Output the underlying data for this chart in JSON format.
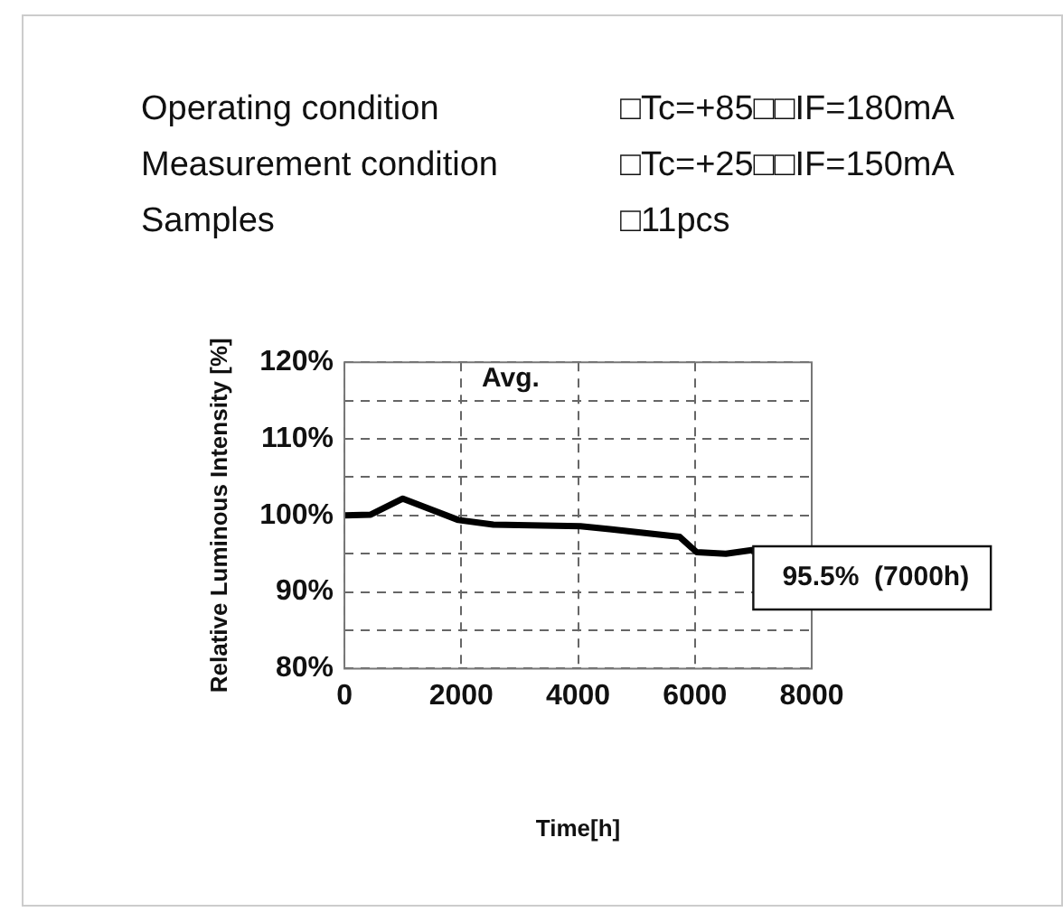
{
  "chart_data": {
    "type": "line",
    "title": "Avg.",
    "xlabel": "Time[h]",
    "ylabel": "Relative Luminous Intensity [%]",
    "annotations": [
      "Operating condition",
      "□Tc=+85□□IF=180mA",
      "Measurement condition",
      "□Tc=+25□□IF=150mA",
      "Samples",
      "□11pcs",
      {
        "text": "95.5%  (7000h)",
        "x": 7000,
        "y": 95.5
      }
    ],
    "x": [
      0,
      450,
      1000,
      1950,
      2550,
      4040,
      4540,
      5740,
      6030,
      6530,
      7000
    ],
    "series": [
      {
        "color": "#000000",
        "values": [
          100,
          100.1,
          102.2,
          99.4,
          98.8,
          98.6,
          98.2,
          97.2,
          95.2,
          95.0,
          95.5
        ]
      }
    ],
    "xlim": [
      0,
      8000
    ],
    "xticks": [
      0,
      2000,
      4000,
      6000,
      8000
    ],
    "ylim": [
      80,
      120
    ],
    "yticks": [
      {
        "value": 80,
        "label": "80%"
      },
      {
        "value": 85,
        "label": null
      },
      {
        "value": 90,
        "label": "90%"
      },
      {
        "value": 95,
        "label": null
      },
      {
        "value": 100,
        "label": "100%"
      },
      {
        "value": 105,
        "label": null
      },
      {
        "value": 110,
        "label": "110%"
      },
      {
        "value": 115,
        "label": null
      },
      {
        "value": 120,
        "label": "120%"
      }
    ],
    "grid": true,
    "legend": false,
    "marker": "none",
    "line_style": "solid"
  }
}
